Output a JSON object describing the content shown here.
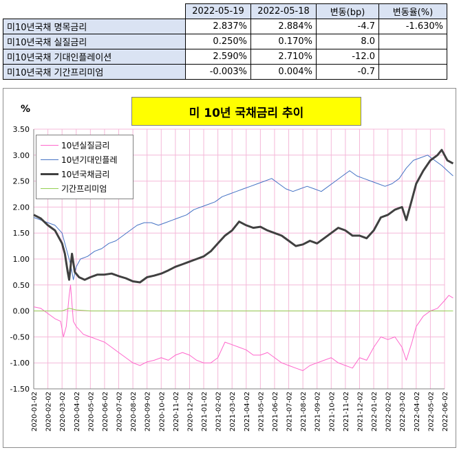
{
  "table": {
    "headers": [
      "2022-05-19",
      "2022-05-18",
      "변동(bp)",
      "변동율(%)"
    ],
    "rows": [
      {
        "label": "미10년국채 명목금리",
        "d1": "2.837%",
        "d2": "2.884%",
        "chg": "-4.7",
        "pct": "-1.630%"
      },
      {
        "label": "미10년국채 실질금리",
        "d1": "0.250%",
        "d2": "0.170%",
        "chg": "8.0",
        "pct": ""
      },
      {
        "label": "미10년국채 기대인플레이션",
        "d1": "2.590%",
        "d2": "2.710%",
        "chg": "-12.0",
        "pct": ""
      },
      {
        "label": "미10년국채 기간프리미엄",
        "d1": "-0.003%",
        "d2": "0.004%",
        "chg": "-0.7",
        "pct": ""
      }
    ]
  },
  "chart_data": {
    "type": "line",
    "title": "미 10년 국채금리 추이",
    "ylabel": "%",
    "ylim": [
      -1.5,
      3.5
    ],
    "yticks": [
      "3.50",
      "3.00",
      "2.50",
      "2.00",
      "1.50",
      "1.00",
      "0.50",
      "0.00",
      "-0.50",
      "-1.00",
      "-1.50"
    ],
    "xticks": [
      "2020-01-02",
      "2020-02-02",
      "2020-03-02",
      "2020-04-02",
      "2020-05-02",
      "2020-06-02",
      "2020-07-02",
      "2020-08-02",
      "2020-09-02",
      "2020-10-02",
      "2020-11-02",
      "2020-12-02",
      "2021-01-02",
      "2021-02-02",
      "2021-03-02",
      "2021-04-02",
      "2021-05-02",
      "2021-06-02",
      "2021-07-02",
      "2021-08-02",
      "2021-09-02",
      "2021-10-02",
      "2021-11-02",
      "2021-12-02",
      "2022-01-02",
      "2022-02-02",
      "2022-03-02",
      "2022-04-02",
      "2022-05-02",
      "2022-06-02"
    ],
    "x_index_note": "x values are month offsets from 2020-01-02",
    "series": [
      {
        "name": "10년실질금리",
        "color": "#ff66cc",
        "points": [
          [
            0,
            0.08
          ],
          [
            0.5,
            0.05
          ],
          [
            1,
            -0.05
          ],
          [
            1.5,
            -0.15
          ],
          [
            1.9,
            -0.2
          ],
          [
            2.1,
            -0.5
          ],
          [
            2.3,
            -0.3
          ],
          [
            2.5,
            0.3
          ],
          [
            2.6,
            0.5
          ],
          [
            2.8,
            -0.2
          ],
          [
            3.0,
            -0.3
          ],
          [
            3.5,
            -0.45
          ],
          [
            4,
            -0.5
          ],
          [
            4.5,
            -0.55
          ],
          [
            5,
            -0.6
          ],
          [
            5.5,
            -0.7
          ],
          [
            6,
            -0.8
          ],
          [
            6.5,
            -0.9
          ],
          [
            7,
            -1.0
          ],
          [
            7.5,
            -1.05
          ],
          [
            8,
            -0.98
          ],
          [
            8.5,
            -0.95
          ],
          [
            9,
            -0.9
          ],
          [
            9.5,
            -0.95
          ],
          [
            10,
            -0.85
          ],
          [
            10.5,
            -0.8
          ],
          [
            11,
            -0.85
          ],
          [
            11.5,
            -0.95
          ],
          [
            12,
            -1.0
          ],
          [
            12.5,
            -1.0
          ],
          [
            13,
            -0.9
          ],
          [
            13.5,
            -0.6
          ],
          [
            14,
            -0.65
          ],
          [
            14.5,
            -0.7
          ],
          [
            15,
            -0.75
          ],
          [
            15.5,
            -0.85
          ],
          [
            16,
            -0.85
          ],
          [
            16.5,
            -0.8
          ],
          [
            17,
            -0.9
          ],
          [
            17.5,
            -1.0
          ],
          [
            18,
            -1.05
          ],
          [
            18.5,
            -1.1
          ],
          [
            19,
            -1.15
          ],
          [
            19.5,
            -1.05
          ],
          [
            20,
            -1.0
          ],
          [
            20.5,
            -0.95
          ],
          [
            21,
            -0.9
          ],
          [
            21.5,
            -1.0
          ],
          [
            22,
            -1.05
          ],
          [
            22.5,
            -1.1
          ],
          [
            23,
            -0.9
          ],
          [
            23.5,
            -0.95
          ],
          [
            24,
            -0.7
          ],
          [
            24.5,
            -0.5
          ],
          [
            25,
            -0.55
          ],
          [
            25.5,
            -0.5
          ],
          [
            26,
            -0.7
          ],
          [
            26.3,
            -0.95
          ],
          [
            26.7,
            -0.6
          ],
          [
            27,
            -0.3
          ],
          [
            27.5,
            -0.1
          ],
          [
            28,
            0.0
          ],
          [
            28.5,
            0.05
          ],
          [
            29,
            0.2
          ],
          [
            29.3,
            0.3
          ],
          [
            29.6,
            0.25
          ]
        ]
      },
      {
        "name": "10년기대인플레",
        "color": "#4472c4",
        "points": [
          [
            0,
            1.8
          ],
          [
            0.5,
            1.75
          ],
          [
            1,
            1.7
          ],
          [
            1.5,
            1.65
          ],
          [
            2,
            1.5
          ],
          [
            2.3,
            1.2
          ],
          [
            2.6,
            0.9
          ],
          [
            2.8,
            0.6
          ],
          [
            3.0,
            0.85
          ],
          [
            3.3,
            1.0
          ],
          [
            3.8,
            1.05
          ],
          [
            4.3,
            1.15
          ],
          [
            4.8,
            1.2
          ],
          [
            5.3,
            1.3
          ],
          [
            5.8,
            1.35
          ],
          [
            6.3,
            1.45
          ],
          [
            6.8,
            1.55
          ],
          [
            7.3,
            1.65
          ],
          [
            7.8,
            1.7
          ],
          [
            8.3,
            1.7
          ],
          [
            8.8,
            1.65
          ],
          [
            9.3,
            1.7
          ],
          [
            9.8,
            1.75
          ],
          [
            10.3,
            1.8
          ],
          [
            10.8,
            1.85
          ],
          [
            11.3,
            1.95
          ],
          [
            11.8,
            2.0
          ],
          [
            12.3,
            2.05
          ],
          [
            12.8,
            2.1
          ],
          [
            13.3,
            2.2
          ],
          [
            13.8,
            2.25
          ],
          [
            14.3,
            2.3
          ],
          [
            14.8,
            2.35
          ],
          [
            15.3,
            2.4
          ],
          [
            15.8,
            2.45
          ],
          [
            16.3,
            2.5
          ],
          [
            16.8,
            2.55
          ],
          [
            17.3,
            2.45
          ],
          [
            17.8,
            2.35
          ],
          [
            18.3,
            2.3
          ],
          [
            18.8,
            2.35
          ],
          [
            19.3,
            2.4
          ],
          [
            19.8,
            2.35
          ],
          [
            20.3,
            2.3
          ],
          [
            20.8,
            2.4
          ],
          [
            21.3,
            2.5
          ],
          [
            21.8,
            2.6
          ],
          [
            22.3,
            2.7
          ],
          [
            22.8,
            2.6
          ],
          [
            23.3,
            2.55
          ],
          [
            23.8,
            2.5
          ],
          [
            24.3,
            2.45
          ],
          [
            24.8,
            2.4
          ],
          [
            25.3,
            2.45
          ],
          [
            25.8,
            2.55
          ],
          [
            26.3,
            2.75
          ],
          [
            26.8,
            2.9
          ],
          [
            27.3,
            2.95
          ],
          [
            27.8,
            3.0
          ],
          [
            28.3,
            2.9
          ],
          [
            28.8,
            2.8
          ],
          [
            29.2,
            2.7
          ],
          [
            29.6,
            2.6
          ]
        ]
      },
      {
        "name": "10년국채금리",
        "color": "#404040",
        "points": [
          [
            0,
            1.85
          ],
          [
            0.5,
            1.78
          ],
          [
            1,
            1.65
          ],
          [
            1.5,
            1.55
          ],
          [
            2,
            1.3
          ],
          [
            2.2,
            1.1
          ],
          [
            2.4,
            0.75
          ],
          [
            2.5,
            0.6
          ],
          [
            2.7,
            1.1
          ],
          [
            2.9,
            0.75
          ],
          [
            3.2,
            0.65
          ],
          [
            3.6,
            0.6
          ],
          [
            4,
            0.65
          ],
          [
            4.5,
            0.7
          ],
          [
            5,
            0.7
          ],
          [
            5.5,
            0.72
          ],
          [
            6,
            0.67
          ],
          [
            6.5,
            0.63
          ],
          [
            7,
            0.57
          ],
          [
            7.5,
            0.55
          ],
          [
            8,
            0.65
          ],
          [
            8.5,
            0.68
          ],
          [
            9,
            0.72
          ],
          [
            9.5,
            0.78
          ],
          [
            10,
            0.85
          ],
          [
            10.5,
            0.9
          ],
          [
            11,
            0.95
          ],
          [
            11.5,
            1.0
          ],
          [
            12,
            1.05
          ],
          [
            12.5,
            1.15
          ],
          [
            13,
            1.3
          ],
          [
            13.5,
            1.45
          ],
          [
            14,
            1.55
          ],
          [
            14.5,
            1.72
          ],
          [
            15,
            1.65
          ],
          [
            15.5,
            1.6
          ],
          [
            16,
            1.62
          ],
          [
            16.5,
            1.55
          ],
          [
            17,
            1.5
          ],
          [
            17.5,
            1.45
          ],
          [
            18,
            1.35
          ],
          [
            18.5,
            1.25
          ],
          [
            19,
            1.28
          ],
          [
            19.5,
            1.35
          ],
          [
            20,
            1.3
          ],
          [
            20.5,
            1.4
          ],
          [
            21,
            1.5
          ],
          [
            21.5,
            1.6
          ],
          [
            22,
            1.55
          ],
          [
            22.5,
            1.45
          ],
          [
            23,
            1.45
          ],
          [
            23.5,
            1.4
          ],
          [
            24,
            1.55
          ],
          [
            24.5,
            1.8
          ],
          [
            25,
            1.85
          ],
          [
            25.5,
            1.95
          ],
          [
            26,
            2.0
          ],
          [
            26.3,
            1.75
          ],
          [
            26.7,
            2.15
          ],
          [
            27,
            2.45
          ],
          [
            27.5,
            2.7
          ],
          [
            28,
            2.9
          ],
          [
            28.5,
            3.0
          ],
          [
            28.8,
            3.1
          ],
          [
            29.2,
            2.9
          ],
          [
            29.6,
            2.84
          ]
        ]
      },
      {
        "name": "기간프리미엄",
        "color": "#92d050",
        "points": [
          [
            0,
            0.0
          ],
          [
            1,
            0.0
          ],
          [
            2,
            0.0
          ],
          [
            2.5,
            0.05
          ],
          [
            3,
            0.02
          ],
          [
            4,
            0.0
          ],
          [
            6,
            0.0
          ],
          [
            8,
            0.0
          ],
          [
            10,
            0.0
          ],
          [
            12,
            0.0
          ],
          [
            14,
            0.0
          ],
          [
            16,
            0.0
          ],
          [
            18,
            0.0
          ],
          [
            20,
            0.0
          ],
          [
            22,
            0.0
          ],
          [
            24,
            0.0
          ],
          [
            26,
            0.0
          ],
          [
            28,
            0.0
          ],
          [
            29.6,
            0.0
          ]
        ]
      }
    ]
  }
}
